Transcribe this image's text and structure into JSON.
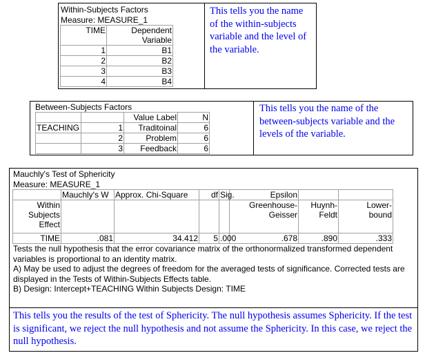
{
  "within": {
    "title": "Within-Subjects Factors",
    "measure": "Measure: MEASURE_1",
    "headers": [
      "TIME",
      "Dependent",
      "Variable"
    ],
    "rows": [
      [
        "1",
        "B1"
      ],
      [
        "2",
        "B2"
      ],
      [
        "3",
        "B3"
      ],
      [
        "4",
        "B4"
      ]
    ],
    "note": "This tells you the name of the within-subjects variable and the level of the variable."
  },
  "between": {
    "title": "Between-Subjects Factors",
    "headers": [
      "Value Label",
      "N"
    ],
    "factor": "TEACHING",
    "rows": [
      [
        "1",
        "Traditoinal",
        "6"
      ],
      [
        "2",
        "Problem",
        "6"
      ],
      [
        "3",
        "Feedback",
        "6"
      ]
    ],
    "note": "This tells you the name of the between-subjects variable and the levels of the variable."
  },
  "mauchly": {
    "title": "Mauchly's Test of Sphericity",
    "measure": "Measure: MEASURE_1",
    "headers": {
      "w": "Mauchly's W",
      "chi": "Approx. Chi-Square",
      "df": "df",
      "sig": "Sig.",
      "eps": "Epsilon",
      "effect": [
        "Within",
        "Subjects",
        "Effect"
      ],
      "gg": [
        "Greenhouse-",
        "Geisser"
      ],
      "hf": [
        "Huynh-",
        "Feldt"
      ],
      "lb": [
        "Lower-",
        "bound"
      ]
    },
    "row": {
      "effect": "TIME",
      "w": ".081",
      "chi": "34.412",
      "df": "5",
      "sig": ".000",
      "gg": ".678",
      "hf": ".890",
      "lb": ".333"
    },
    "footnotes": [
      "Tests the null hypothesis that the error covariance matrix of the orthonormalized transformed dependent variables is proportional to an identity matrix.",
      "A) May be used to adjust the degrees of freedom for the averaged tests of significance. Corrected tests are displayed in the Tests of Within-Subjects Effects table.",
      "B) Design: Intercept+TEACHING  Within Subjects Design: TIME"
    ],
    "note": "This tells you the results of the test of Sphericity. The null hypothesis assumes Sphericity. If the test is significant, we reject the null hypothesis and not assume the Sphericity. In this case, we reject the null hypothesis."
  }
}
